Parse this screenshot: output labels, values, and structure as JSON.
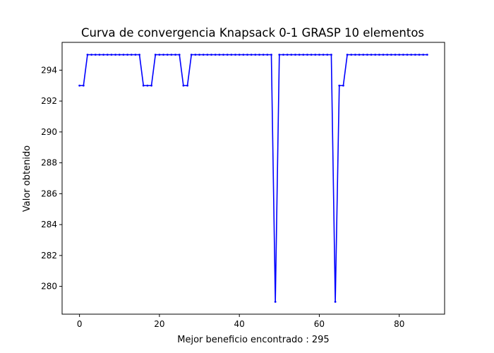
{
  "chart_data": {
    "type": "line",
    "title": "Curva de convergencia Knapsack 0-1 GRASP 10 elementos",
    "xlabel": "Mejor beneficio encontrado : 295",
    "ylabel": "Valor obtenido",
    "xlim": [
      -4.35,
      91.35
    ],
    "ylim": [
      278.2,
      295.8
    ],
    "xticks": [
      0,
      20,
      40,
      60,
      80
    ],
    "yticks": [
      280,
      282,
      284,
      286,
      288,
      290,
      292,
      294
    ],
    "grid": false,
    "line_color": "#0000ff",
    "marker": "dot",
    "series": [
      {
        "x": [
          0,
          1,
          2,
          3,
          4,
          5,
          6,
          7,
          8,
          9,
          10,
          11,
          12,
          13,
          14,
          15,
          16,
          17,
          18,
          19,
          20,
          21,
          22,
          23,
          24,
          25,
          26,
          27,
          28,
          29,
          30,
          31,
          32,
          33,
          34,
          35,
          36,
          37,
          38,
          39,
          40,
          41,
          42,
          43,
          44,
          45,
          46,
          47,
          48,
          49,
          50,
          51,
          52,
          53,
          54,
          55,
          56,
          57,
          58,
          59,
          60,
          61,
          62,
          63,
          64,
          65,
          66,
          67,
          68,
          69,
          70,
          71,
          72,
          73,
          74,
          75,
          76,
          77,
          78,
          79,
          80,
          81,
          82,
          83,
          84,
          85,
          86,
          87
        ],
        "y": [
          293,
          293,
          295,
          295,
          295,
          295,
          295,
          295,
          295,
          295,
          295,
          295,
          295,
          295,
          295,
          295,
          293,
          293,
          293,
          295,
          295,
          295,
          295,
          295,
          295,
          295,
          293,
          293,
          295,
          295,
          295,
          295,
          295,
          295,
          295,
          295,
          295,
          295,
          295,
          295,
          295,
          295,
          295,
          295,
          295,
          295,
          295,
          295,
          295,
          279,
          295,
          295,
          295,
          295,
          295,
          295,
          295,
          295,
          295,
          295,
          295,
          295,
          295,
          295,
          279,
          293,
          293,
          295,
          295,
          295,
          295,
          295,
          295,
          295,
          295,
          295,
          295,
          295,
          295,
          295,
          295,
          295,
          295,
          295,
          295,
          295,
          295,
          295
        ]
      }
    ]
  }
}
